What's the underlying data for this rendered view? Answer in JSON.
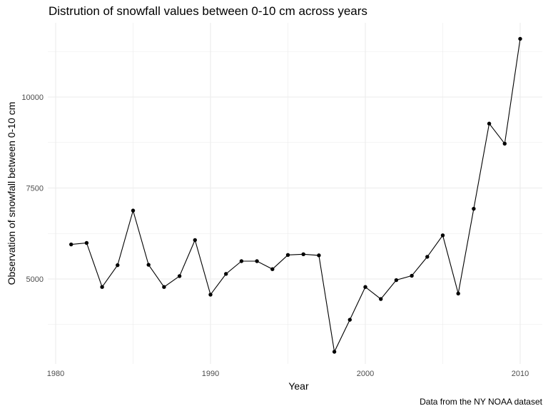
{
  "chart_data": {
    "type": "line",
    "title": "Distrution of snowfall values between 0-10 cm across years",
    "xlabel": "Year",
    "ylabel": "Observation of snowfall between 0-10 cm",
    "caption": "Data from the NY NOAA dataset",
    "xlim": [
      1980,
      2010
    ],
    "ylim": [
      3000,
      11500
    ],
    "x_ticks": [
      1980,
      1990,
      2000,
      2010
    ],
    "y_ticks": [
      5000,
      7500,
      10000
    ],
    "grid": true,
    "series": [
      {
        "x": [
          1981,
          1982,
          1983,
          1984,
          1985,
          1986,
          1987,
          1988,
          1989,
          1990,
          1991,
          1992,
          1993,
          1994,
          1995,
          1996,
          1997,
          1998,
          1999,
          2000,
          2001,
          2002,
          2003,
          2004,
          2005,
          2006,
          2007,
          2008,
          2009,
          2010
        ],
        "values": [
          5950,
          5990,
          4780,
          5380,
          6880,
          5390,
          4780,
          5080,
          6070,
          4570,
          5140,
          5490,
          5490,
          5270,
          5660,
          5680,
          5650,
          3000,
          3880,
          4780,
          4450,
          4970,
          5090,
          5610,
          6200,
          4600,
          6930,
          9270,
          8720,
          11600
        ]
      }
    ],
    "colors": {
      "line": "#000000",
      "point": "#000000",
      "grid": "#ebebeb",
      "tick_text": "#4d4d4d"
    }
  }
}
